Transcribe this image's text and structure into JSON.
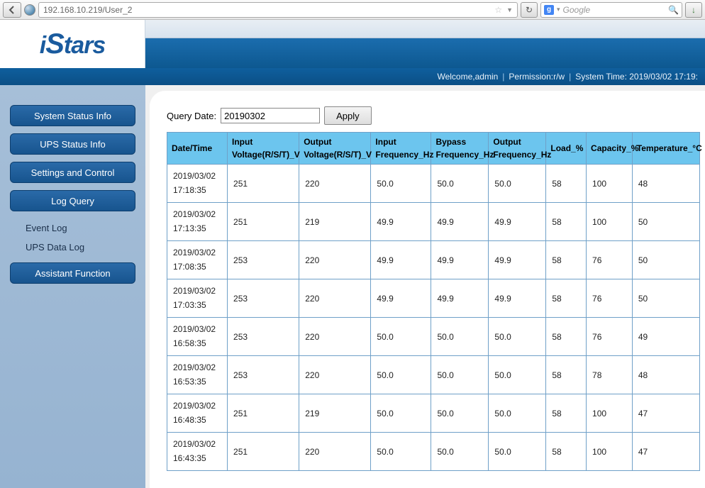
{
  "browser": {
    "url": "192.168.10.219/User_2",
    "search_placeholder": "Google",
    "search_badge": "g"
  },
  "logo": {
    "i": "i",
    "S": "S",
    "rest": "tars"
  },
  "statusbar": {
    "welcome": "Welcome,admin",
    "permission": "Permission:r/w",
    "systime": "System Time: 2019/03/02 17:19:"
  },
  "sidebar": {
    "buttons": {
      "system_status": "System Status Info",
      "ups_status": "UPS Status Info",
      "settings": "Settings and Control",
      "log_query": "Log Query",
      "assistant": "Assistant Function"
    },
    "links": {
      "event_log": "Event Log",
      "ups_data_log": "UPS Data Log"
    }
  },
  "query": {
    "label": "Query Date:",
    "value": "20190302",
    "apply": "Apply"
  },
  "table": {
    "header_bg": "#6cc5ee",
    "border_color": "#6fa0c8",
    "columns": [
      "Date/Time",
      "Input Voltage(R/S/T)_V",
      "Output Voltage(R/S/T)_V",
      "Input Frequency_Hz",
      "Bypass Frequency_Hz",
      "Output Frequency_Hz",
      "Load_%",
      "Capacity_%",
      "Temperature_°C"
    ],
    "rows": [
      {
        "dt1": "2019/03/02",
        "dt2": "17:18:35",
        "iv": "251",
        "ov": "220",
        "if": "50.0",
        "bf": "50.0",
        "of": "50.0",
        "ld": "58",
        "cp": "100",
        "tp": "48"
      },
      {
        "dt1": "2019/03/02",
        "dt2": "17:13:35",
        "iv": "251",
        "ov": "219",
        "if": "49.9",
        "bf": "49.9",
        "of": "49.9",
        "ld": "58",
        "cp": "100",
        "tp": "50"
      },
      {
        "dt1": "2019/03/02",
        "dt2": "17:08:35",
        "iv": "253",
        "ov": "220",
        "if": "49.9",
        "bf": "49.9",
        "of": "49.9",
        "ld": "58",
        "cp": "76",
        "tp": "50"
      },
      {
        "dt1": "2019/03/02",
        "dt2": "17:03:35",
        "iv": "253",
        "ov": "220",
        "if": "49.9",
        "bf": "49.9",
        "of": "49.9",
        "ld": "58",
        "cp": "76",
        "tp": "50"
      },
      {
        "dt1": "2019/03/02",
        "dt2": "16:58:35",
        "iv": "253",
        "ov": "220",
        "if": "50.0",
        "bf": "50.0",
        "of": "50.0",
        "ld": "58",
        "cp": "76",
        "tp": "49"
      },
      {
        "dt1": "2019/03/02",
        "dt2": "16:53:35",
        "iv": "253",
        "ov": "220",
        "if": "50.0",
        "bf": "50.0",
        "of": "50.0",
        "ld": "58",
        "cp": "78",
        "tp": "48"
      },
      {
        "dt1": "2019/03/02",
        "dt2": "16:48:35",
        "iv": "251",
        "ov": "219",
        "if": "50.0",
        "bf": "50.0",
        "of": "50.0",
        "ld": "58",
        "cp": "100",
        "tp": "47"
      },
      {
        "dt1": "2019/03/02",
        "dt2": "16:43:35",
        "iv": "251",
        "ov": "220",
        "if": "50.0",
        "bf": "50.0",
        "of": "50.0",
        "ld": "58",
        "cp": "100",
        "tp": "47"
      }
    ]
  }
}
